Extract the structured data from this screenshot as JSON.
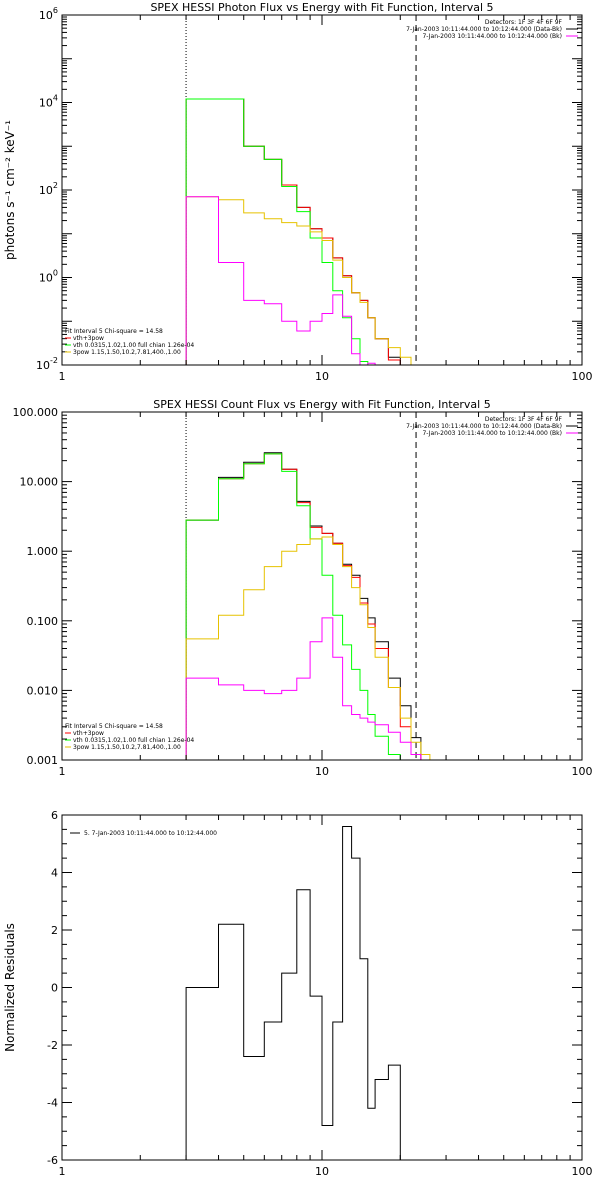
{
  "chart_data": [
    {
      "type": "line",
      "title": "SPEX HESSI Photon Flux vs Energy with Fit Function, Interval 5",
      "ylabel": "photons s⁻¹ cm⁻² keV⁻¹",
      "xlabel": "",
      "xscale": "log",
      "yscale": "log",
      "xlim": [
        1,
        100
      ],
      "ylim": [
        0.01,
        1000000
      ],
      "xticks": [
        "1",
        "10",
        "100"
      ],
      "yticks": [
        {
          "v": 0.01,
          "b": "10",
          "e": "-2"
        },
        {
          "v": 1,
          "b": "10",
          "e": "0"
        },
        {
          "v": 100,
          "b": "10",
          "e": "2"
        },
        {
          "v": 10000,
          "b": "10",
          "e": "4"
        },
        {
          "v": 1000000,
          "b": "10",
          "e": "6"
        }
      ],
      "vlines": [
        {
          "x": 3.0,
          "style": "dotted"
        },
        {
          "x": 23.0,
          "style": "dashed"
        }
      ],
      "topright": [
        "Detectors: 1F 3F 4F 6F 9F",
        "7-Jan-2003 10:11:44.000 to 10:12:44.000 (Data-Bk)",
        "7-Jan-2003 10:11:44.000 to 10:12:44.000 (Bk)"
      ],
      "legend_lines": [
        "Fit Interval 5   Chi-square = 14.58",
        "vth+3pow",
        "vth 0.0315,1.02,1.00  full chian 1.26e-04",
        "3pow 1.15,1.50,10.2,7.81,400.,1.00"
      ],
      "edges": [
        3.0,
        4.0,
        5.0,
        6.0,
        7.0,
        8.0,
        9.0,
        10.0,
        11.0,
        12.0,
        13.0,
        14.0,
        15.0,
        16.0,
        18.0,
        20.0,
        22.0,
        24.0,
        26.0
      ],
      "series": [
        {
          "name": "",
          "color": "#000000",
          "values": [
            12000,
            12000,
            1000,
            500,
            130,
            40,
            13,
            8,
            2.8,
            1.1,
            0.45,
            0.3,
            0.12,
            0.04,
            0.015,
            0.01,
            null,
            null
          ]
        },
        {
          "name": "",
          "color": "#ff0000",
          "values": [
            12000,
            12000,
            1000,
            500,
            130,
            40,
            13,
            8,
            2.8,
            1.1,
            0.45,
            0.3,
            0.12,
            0.04,
            0.013,
            null,
            null,
            null
          ]
        },
        {
          "name": "",
          "color": "#00ff00",
          "values": [
            12000,
            12000,
            1000,
            500,
            120,
            32,
            8,
            2.2,
            0.5,
            0.12,
            0.04,
            0.012,
            null,
            null,
            null,
            null,
            null,
            null
          ]
        },
        {
          "name": "",
          "color": "#e6c200",
          "values": [
            70,
            60,
            30,
            22,
            18,
            15,
            11,
            7,
            2.5,
            1.0,
            0.45,
            0.27,
            0.12,
            0.04,
            0.025,
            0.015,
            0.01,
            null
          ]
        },
        {
          "name": "",
          "color": "#ff00ff",
          "values": [
            70,
            2.2,
            0.3,
            0.25,
            0.1,
            0.06,
            0.1,
            0.15,
            0.4,
            0.13,
            0.018,
            0.01,
            0.011,
            null,
            null,
            null,
            null,
            null
          ]
        }
      ]
    },
    {
      "type": "line",
      "title": "SPEX HESSI Count Flux vs Energy with Fit Function, Interval 5",
      "ylabel": "",
      "xlabel": "",
      "xscale": "log",
      "yscale": "log",
      "xlim": [
        1,
        100
      ],
      "ylim": [
        0.001,
        100
      ],
      "xticks": [
        "1",
        "10",
        "100"
      ],
      "yticks": [
        {
          "v": 0.001,
          "t": "0.001"
        },
        {
          "v": 0.01,
          "t": "0.010"
        },
        {
          "v": 0.1,
          "t": "0.100"
        },
        {
          "v": 1,
          "t": "1.000"
        },
        {
          "v": 10,
          "t": "10.000"
        },
        {
          "v": 100,
          "t": "100.000"
        }
      ],
      "vlines": [
        {
          "x": 3.0,
          "style": "dotted"
        },
        {
          "x": 23.0,
          "style": "dashed"
        }
      ],
      "topright": [
        "Detectors: 1F 3F 4F 6F 9F",
        "7-Jan-2003 10:11:44.000 to 10:12:44.000 (Data-Bk)",
        "7-Jan-2003 10:11:44.000 to 10:12:44.000 (Bk)"
      ],
      "legend_lines": [
        "Fit Interval 5   Chi-square = 14.58",
        "vth+3pow",
        "vth 0.0315,1.02,1.00  full chian 1.26e-04",
        "3pow 1.15,1.50,10.2,7.81,400.,1.00"
      ],
      "edges": [
        3.0,
        4.0,
        5.0,
        6.0,
        7.0,
        8.0,
        9.0,
        10.0,
        11.0,
        12.0,
        13.0,
        14.0,
        15.0,
        16.0,
        18.0,
        20.0,
        22.0,
        24.0,
        26.0,
        28.0
      ],
      "series": [
        {
          "name": "",
          "color": "#000000",
          "values": [
            2.8,
            11.5,
            19,
            26,
            15,
            5.2,
            2.3,
            1.8,
            1.3,
            0.65,
            0.45,
            0.21,
            0.11,
            0.05,
            0.015,
            0.006,
            0.0021,
            null,
            null
          ]
        },
        {
          "name": "",
          "color": "#ff0000",
          "values": [
            2.8,
            11,
            18,
            25,
            15,
            5.0,
            2.2,
            1.8,
            1.3,
            0.62,
            0.42,
            0.18,
            0.09,
            0.04,
            0.011,
            0.003,
            0.0012,
            null,
            null
          ]
        },
        {
          "name": "",
          "color": "#00ff00",
          "values": [
            2.8,
            11,
            18,
            25,
            14,
            4.5,
            1.5,
            0.45,
            0.12,
            0.045,
            0.02,
            0.01,
            0.0045,
            0.0022,
            0.0012,
            null,
            null,
            null,
            null
          ]
        },
        {
          "name": "",
          "color": "#e6c200",
          "values": [
            0.055,
            0.12,
            0.28,
            0.6,
            1.0,
            1.25,
            1.5,
            1.6,
            1.25,
            0.6,
            0.3,
            0.17,
            0.08,
            0.03,
            0.011,
            0.004,
            0.0018,
            0.0012,
            0.0008
          ]
        },
        {
          "name": "",
          "color": "#ff00ff",
          "values": [
            0.015,
            0.012,
            0.01,
            0.009,
            0.01,
            0.015,
            0.05,
            0.11,
            0.03,
            0.006,
            0.0045,
            0.004,
            0.0035,
            0.0032,
            0.0025,
            0.0018,
            0.0012,
            null,
            null
          ]
        }
      ]
    },
    {
      "type": "line",
      "title": "",
      "ylabel": "Normalized Residuals",
      "xlabel": "",
      "xscale": "log",
      "yscale": "linear",
      "xlim": [
        1,
        100
      ],
      "ylim": [
        -6,
        6
      ],
      "xticks": [
        "1",
        "10",
        "100"
      ],
      "yticks": [
        {
          "v": -6,
          "t": "-6"
        },
        {
          "v": -4,
          "t": "-4"
        },
        {
          "v": -2,
          "t": "-2"
        },
        {
          "v": 0,
          "t": "0"
        },
        {
          "v": 2,
          "t": "2"
        },
        {
          "v": 4,
          "t": "4"
        },
        {
          "v": 6,
          "t": "6"
        }
      ],
      "legend_lines": [
        "5.  7-Jan-2003 10:11:44.000 to 10:12:44.000"
      ],
      "edges": [
        3.0,
        4.0,
        5.0,
        6.0,
        7.0,
        8.0,
        9.0,
        10.0,
        11.0,
        12.0,
        13.0,
        14.0,
        15.0,
        16.0,
        18.0,
        20.0,
        22.0,
        24.0
      ],
      "series": [
        {
          "name": "",
          "color": "#000000",
          "values": [
            0,
            2.2,
            -2.4,
            -1.2,
            0.5,
            3.4,
            -0.3,
            -4.8,
            -1.2,
            5.6,
            4.5,
            1.0,
            -4.2,
            -3.2,
            -2.7,
            null,
            null
          ]
        }
      ]
    }
  ]
}
